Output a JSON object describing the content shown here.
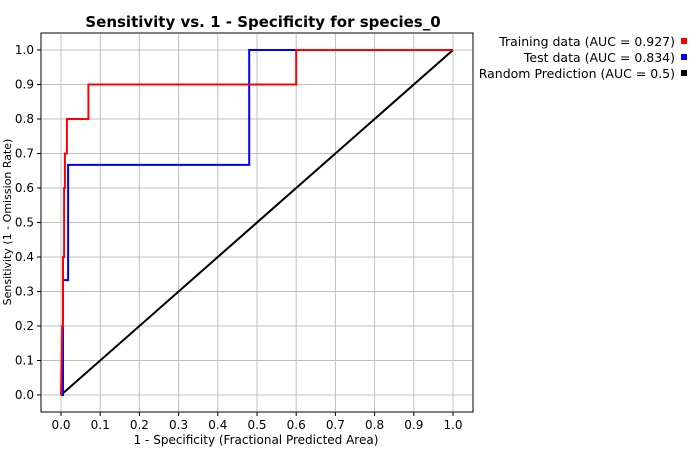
{
  "chart_data": {
    "type": "line",
    "title": "Sensitivity vs. 1 - Specificity for species_0",
    "xlabel": "1 - Specificity  (Fractional Predicted Area)",
    "ylabel": "Sensitivity (1 - Omission Rate)",
    "xlim": [
      0,
      1
    ],
    "ylim": [
      0,
      1
    ],
    "x_ticks": [
      "0.0",
      "0.1",
      "0.2",
      "0.3",
      "0.4",
      "0.5",
      "0.6",
      "0.7",
      "0.8",
      "0.9",
      "1.0"
    ],
    "y_ticks": [
      "0.0",
      "0.1",
      "0.2",
      "0.3",
      "0.4",
      "0.5",
      "0.6",
      "0.7",
      "0.8",
      "0.9",
      "1.0"
    ],
    "grid": true,
    "legend_position": "top-right-outside",
    "series": [
      {
        "name": "Training data (AUC = 0.927)",
        "color": "#ff0000",
        "points": [
          [
            0,
            0
          ],
          [
            0.003,
            0.2
          ],
          [
            0.005,
            0.2
          ],
          [
            0.005,
            0.4
          ],
          [
            0.008,
            0.4
          ],
          [
            0.008,
            0.6
          ],
          [
            0.01,
            0.6
          ],
          [
            0.01,
            0.7
          ],
          [
            0.015,
            0.7
          ],
          [
            0.015,
            0.8
          ],
          [
            0.07,
            0.8
          ],
          [
            0.07,
            0.9
          ],
          [
            0.6,
            0.9
          ],
          [
            0.6,
            1.0
          ],
          [
            1.0,
            1.0
          ]
        ]
      },
      {
        "name": "Test data (AUC = 0.834)",
        "color": "#0000ff",
        "points": [
          [
            0,
            0
          ],
          [
            0.005,
            0.0
          ],
          [
            0.005,
            0.333
          ],
          [
            0.018,
            0.333
          ],
          [
            0.018,
            0.667
          ],
          [
            0.48,
            0.667
          ],
          [
            0.48,
            1.0
          ],
          [
            1.0,
            1.0
          ]
        ]
      },
      {
        "name": "Random Prediction (AUC = 0.5)",
        "color": "#000000",
        "points": [
          [
            0,
            0
          ],
          [
            1,
            1
          ]
        ]
      }
    ]
  }
}
